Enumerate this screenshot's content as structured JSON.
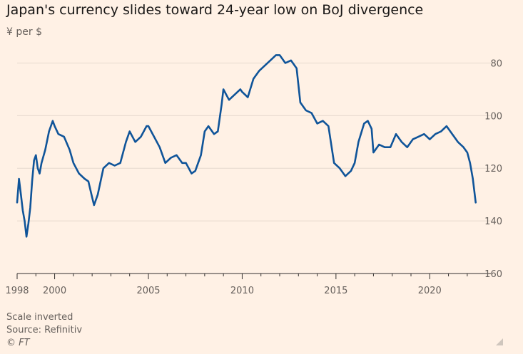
{
  "title": "Japan's currency slides toward 24-year low on BoJ divergence",
  "subtitle": "¥ per $",
  "footer": {
    "note": "Scale inverted",
    "source": "Source: Refinitiv",
    "brand": "© FT"
  },
  "colors": {
    "background": "#fff1e5",
    "line": "#0f5499",
    "grid": "#e6d9ce",
    "axis": "#66605c"
  },
  "chart_data": {
    "type": "line",
    "title": "Japan's currency slides toward 24-year low on BoJ divergence",
    "ylabel": "¥ per $",
    "xlim": [
      1998,
      2022.5
    ],
    "ylim": [
      160,
      75
    ],
    "y_inverted": true,
    "y_axis_side": "right",
    "grid": "horizontal",
    "xticks": [
      1998,
      2000,
      2005,
      2010,
      2015,
      2020
    ],
    "yticks": [
      80,
      100,
      120,
      140,
      160
    ],
    "series": [
      {
        "x": [
          1998.0,
          1998.1,
          1998.2,
          1998.3,
          1998.4,
          1998.5,
          1998.6,
          1998.7,
          1998.8,
          1998.9,
          1999.0,
          1999.1,
          1999.2,
          1999.3,
          1999.5,
          1999.7,
          1999.9,
          2000.0,
          2000.2,
          2000.5,
          2000.8,
          2001.0,
          2001.3,
          2001.6,
          2001.8,
          2002.0,
          2002.1,
          2002.3,
          2002.6,
          2002.9,
          2003.2,
          2003.5,
          2003.8,
          2004.0,
          2004.3,
          2004.6,
          2004.9,
          2005.0,
          2005.3,
          2005.6,
          2005.9,
          2006.2,
          2006.5,
          2006.8,
          2007.0,
          2007.3,
          2007.5,
          2007.8,
          2008.0,
          2008.2,
          2008.5,
          2008.7,
          2008.9,
          2009.0,
          2009.3,
          2009.6,
          2009.9,
          2010.0,
          2010.3,
          2010.6,
          2010.9,
          2011.2,
          2011.5,
          2011.8,
          2012.0,
          2012.3,
          2012.6,
          2012.9,
          2013.1,
          2013.4,
          2013.7,
          2014.0,
          2014.3,
          2014.6,
          2014.9,
          2015.2,
          2015.5,
          2015.8,
          2016.0,
          2016.2,
          2016.5,
          2016.7,
          2016.9,
          2017.0,
          2017.3,
          2017.6,
          2017.9,
          2018.2,
          2018.5,
          2018.8,
          2019.1,
          2019.4,
          2019.7,
          2020.0,
          2020.3,
          2020.6,
          2020.9,
          2021.2,
          2021.5,
          2021.8,
          2022.0,
          2022.15,
          2022.3,
          2022.45
        ],
        "values": [
          133,
          124,
          130,
          136,
          140,
          146,
          141,
          135,
          125,
          117,
          115,
          120,
          122,
          118,
          113,
          106,
          102,
          104,
          107,
          108,
          113,
          118,
          122,
          124,
          125,
          131,
          134,
          130,
          120,
          118,
          119,
          118,
          110,
          106,
          110,
          108,
          104,
          104,
          108,
          112,
          118,
          116,
          115,
          118,
          118,
          122,
          121,
          115,
          106,
          104,
          107,
          106,
          96,
          90,
          94,
          92,
          90,
          91,
          93,
          86,
          83,
          81,
          79,
          77,
          77,
          80,
          79,
          82,
          95,
          98,
          99,
          103,
          102,
          104,
          118,
          120,
          123,
          121,
          118,
          110,
          103,
          102,
          105,
          114,
          111,
          112,
          112,
          107,
          110,
          112,
          109,
          108,
          107,
          109,
          107,
          106,
          104,
          107,
          110,
          112,
          114,
          118,
          124,
          133
        ]
      }
    ]
  }
}
